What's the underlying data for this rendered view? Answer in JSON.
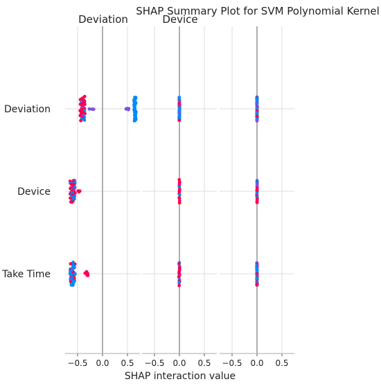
{
  "chart_data": {
    "type": "scatter",
    "subtype": "shap_interaction_summary",
    "title": "SHAP Summary Plot for SVM Polynomial Kernel",
    "xlabel": "SHAP interaction value",
    "ylabel": "",
    "grid": true,
    "legend": "none",
    "xlim": [
      -0.75,
      0.75
    ],
    "xticks": [
      "−0.5",
      "0.0",
      "0.5"
    ],
    "xtick_values": [
      -0.5,
      0.0,
      0.5
    ],
    "features": [
      "Deviation",
      "Device",
      "Take Time"
    ],
    "panel_titles": [
      "Deviation",
      "Device",
      ""
    ],
    "colors": {
      "high": "#ff0052",
      "low": "#008bfb",
      "mid": "#7a52e0",
      "axis": "#aaaaaa",
      "zero": "#999999",
      "grid": "#dddddd"
    },
    "panels": [
      {
        "column_feature": "Deviation",
        "rows": [
          {
            "feature": "Deviation",
            "clusters": [
              {
                "x": -0.4,
                "x_spread": 0.05,
                "y_extent": 0.42,
                "n": 44,
                "high_fraction": 0.75
              },
              {
                "x": 0.65,
                "x_spread": 0.02,
                "y_extent": 0.42,
                "n": 38,
                "high_fraction": 0.0
              },
              {
                "x": -0.2,
                "x_spread": 0.08,
                "y_extent": 0.01,
                "n": 3,
                "high_fraction": 0.0
              },
              {
                "x": 0.48,
                "x_spread": 0.06,
                "y_extent": 0.01,
                "n": 4,
                "high_fraction": 0.0
              }
            ]
          },
          {
            "feature": "Device",
            "clusters": [
              {
                "x": -0.6,
                "x_spread": 0.05,
                "y_extent": 0.4,
                "n": 52,
                "high_fraction": 0.45
              },
              {
                "x": -0.45,
                "x_spread": 0.05,
                "y_extent": 0.01,
                "n": 4,
                "high_fraction": 1.0
              }
            ]
          },
          {
            "feature": "Take Time",
            "clusters": [
              {
                "x": -0.6,
                "x_spread": 0.05,
                "y_extent": 0.4,
                "n": 52,
                "high_fraction": 0.35
              },
              {
                "x": -0.32,
                "x_spread": 0.03,
                "y_extent": 0.06,
                "n": 8,
                "high_fraction": 1.0
              }
            ]
          }
        ]
      },
      {
        "column_feature": "Device",
        "rows": [
          {
            "feature": "Deviation",
            "clusters": [
              {
                "x": 0.0,
                "x_spread": 0.005,
                "y_extent": 0.42,
                "n": 40,
                "high_fraction": 0.3
              }
            ]
          },
          {
            "feature": "Device",
            "clusters": [
              {
                "x": 0.0,
                "x_spread": 0.005,
                "y_extent": 0.4,
                "n": 14,
                "high_fraction": 0.7
              }
            ]
          },
          {
            "feature": "Take Time",
            "clusters": [
              {
                "x": 0.0,
                "x_spread": 0.01,
                "y_extent": 0.4,
                "n": 16,
                "high_fraction": 0.6
              }
            ]
          }
        ]
      },
      {
        "column_feature": "Take Time",
        "rows": [
          {
            "feature": "Deviation",
            "clusters": [
              {
                "x": 0.0,
                "x_spread": 0.005,
                "y_extent": 0.42,
                "n": 38,
                "high_fraction": 0.5
              }
            ]
          },
          {
            "feature": "Device",
            "clusters": [
              {
                "x": 0.0,
                "x_spread": 0.005,
                "y_extent": 0.4,
                "n": 20,
                "high_fraction": 0.65
              }
            ]
          },
          {
            "feature": "Take Time",
            "clusters": [
              {
                "x": 0.0,
                "x_spread": 0.005,
                "y_extent": 0.42,
                "n": 36,
                "high_fraction": 0.5
              }
            ]
          }
        ]
      }
    ]
  }
}
